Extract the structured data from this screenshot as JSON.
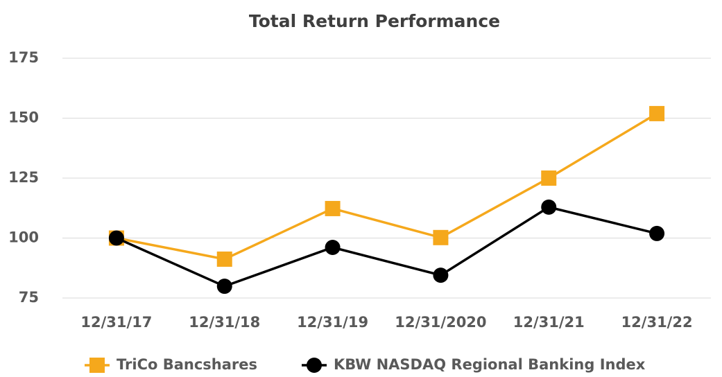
{
  "chart_data": {
    "type": "line",
    "title": "Total Return Performance",
    "categories": [
      "12/31/17",
      "12/31/18",
      "12/31/19",
      "12/31/2020",
      "12/31/21",
      "12/31/22"
    ],
    "series": [
      {
        "name": "TriCo Bancshares",
        "color": "#f5a81c",
        "marker": "square",
        "values": [
          100,
          91.2,
          112.3,
          100.2,
          125,
          151.9
        ]
      },
      {
        "name": "KBW NASDAQ Regional Banking Index",
        "color": "#000000",
        "marker": "circle",
        "values": [
          100,
          79.9,
          96.1,
          84.5,
          112.9,
          101.9
        ]
      }
    ],
    "ylim": [
      75,
      175
    ],
    "yticks": [
      75,
      100,
      125,
      150,
      175
    ],
    "grid": true,
    "legend": "bottom"
  }
}
